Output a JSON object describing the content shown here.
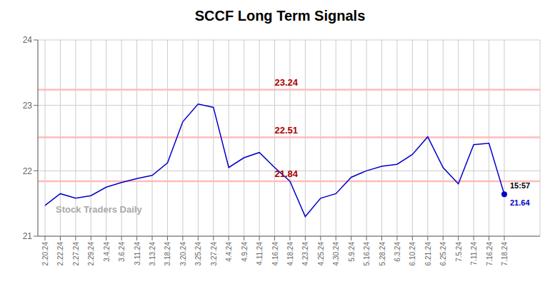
{
  "chart_data": {
    "type": "line",
    "title": "SCCF Long Term Signals",
    "watermark": "Stock Traders Daily",
    "categories": [
      "2.20.24",
      "2.22.24",
      "2.27.24",
      "2.29.24",
      "3.4.24",
      "3.6.24",
      "3.11.24",
      "3.13.24",
      "3.18.24",
      "3.20.24",
      "3.25.24",
      "3.27.24",
      "4.4.24",
      "4.9.24",
      "4.11.24",
      "4.16.24",
      "4.18.24",
      "4.23.24",
      "4.25.24",
      "4.30.24",
      "5.9.24",
      "5.16.24",
      "5.28.24",
      "6.3.24",
      "6.10.24",
      "6.21.24",
      "6.25.24",
      "7.5.24",
      "7.11.24",
      "7.16.24",
      "7.18.24"
    ],
    "values": [
      21.47,
      21.65,
      21.58,
      21.62,
      21.75,
      21.82,
      21.88,
      21.93,
      22.12,
      22.75,
      23.02,
      22.97,
      22.05,
      22.2,
      22.28,
      22.05,
      21.84,
      21.3,
      21.58,
      21.65,
      21.9,
      22.0,
      22.07,
      22.1,
      22.25,
      22.52,
      22.05,
      21.8,
      22.4,
      22.42,
      21.64
    ],
    "color": "#0000cc",
    "reference_lines": [
      {
        "y": 23.24,
        "color": "#ffbbbb"
      },
      {
        "y": 22.51,
        "color": "#ffbbbb"
      },
      {
        "y": 21.84,
        "color": "#ffbbbb"
      }
    ],
    "annotations": [
      {
        "text": "23.24",
        "y": 23.24,
        "color": "#aa0000"
      },
      {
        "text": "22.51",
        "y": 22.51,
        "color": "#aa0000"
      },
      {
        "text": "21.84",
        "y": 21.84,
        "color": "#aa0000"
      }
    ],
    "end_label": {
      "time": "15:57",
      "value": 21.64
    },
    "ylim": [
      21,
      24
    ],
    "yticks": [
      21,
      22,
      23,
      24
    ],
    "grid": true
  }
}
